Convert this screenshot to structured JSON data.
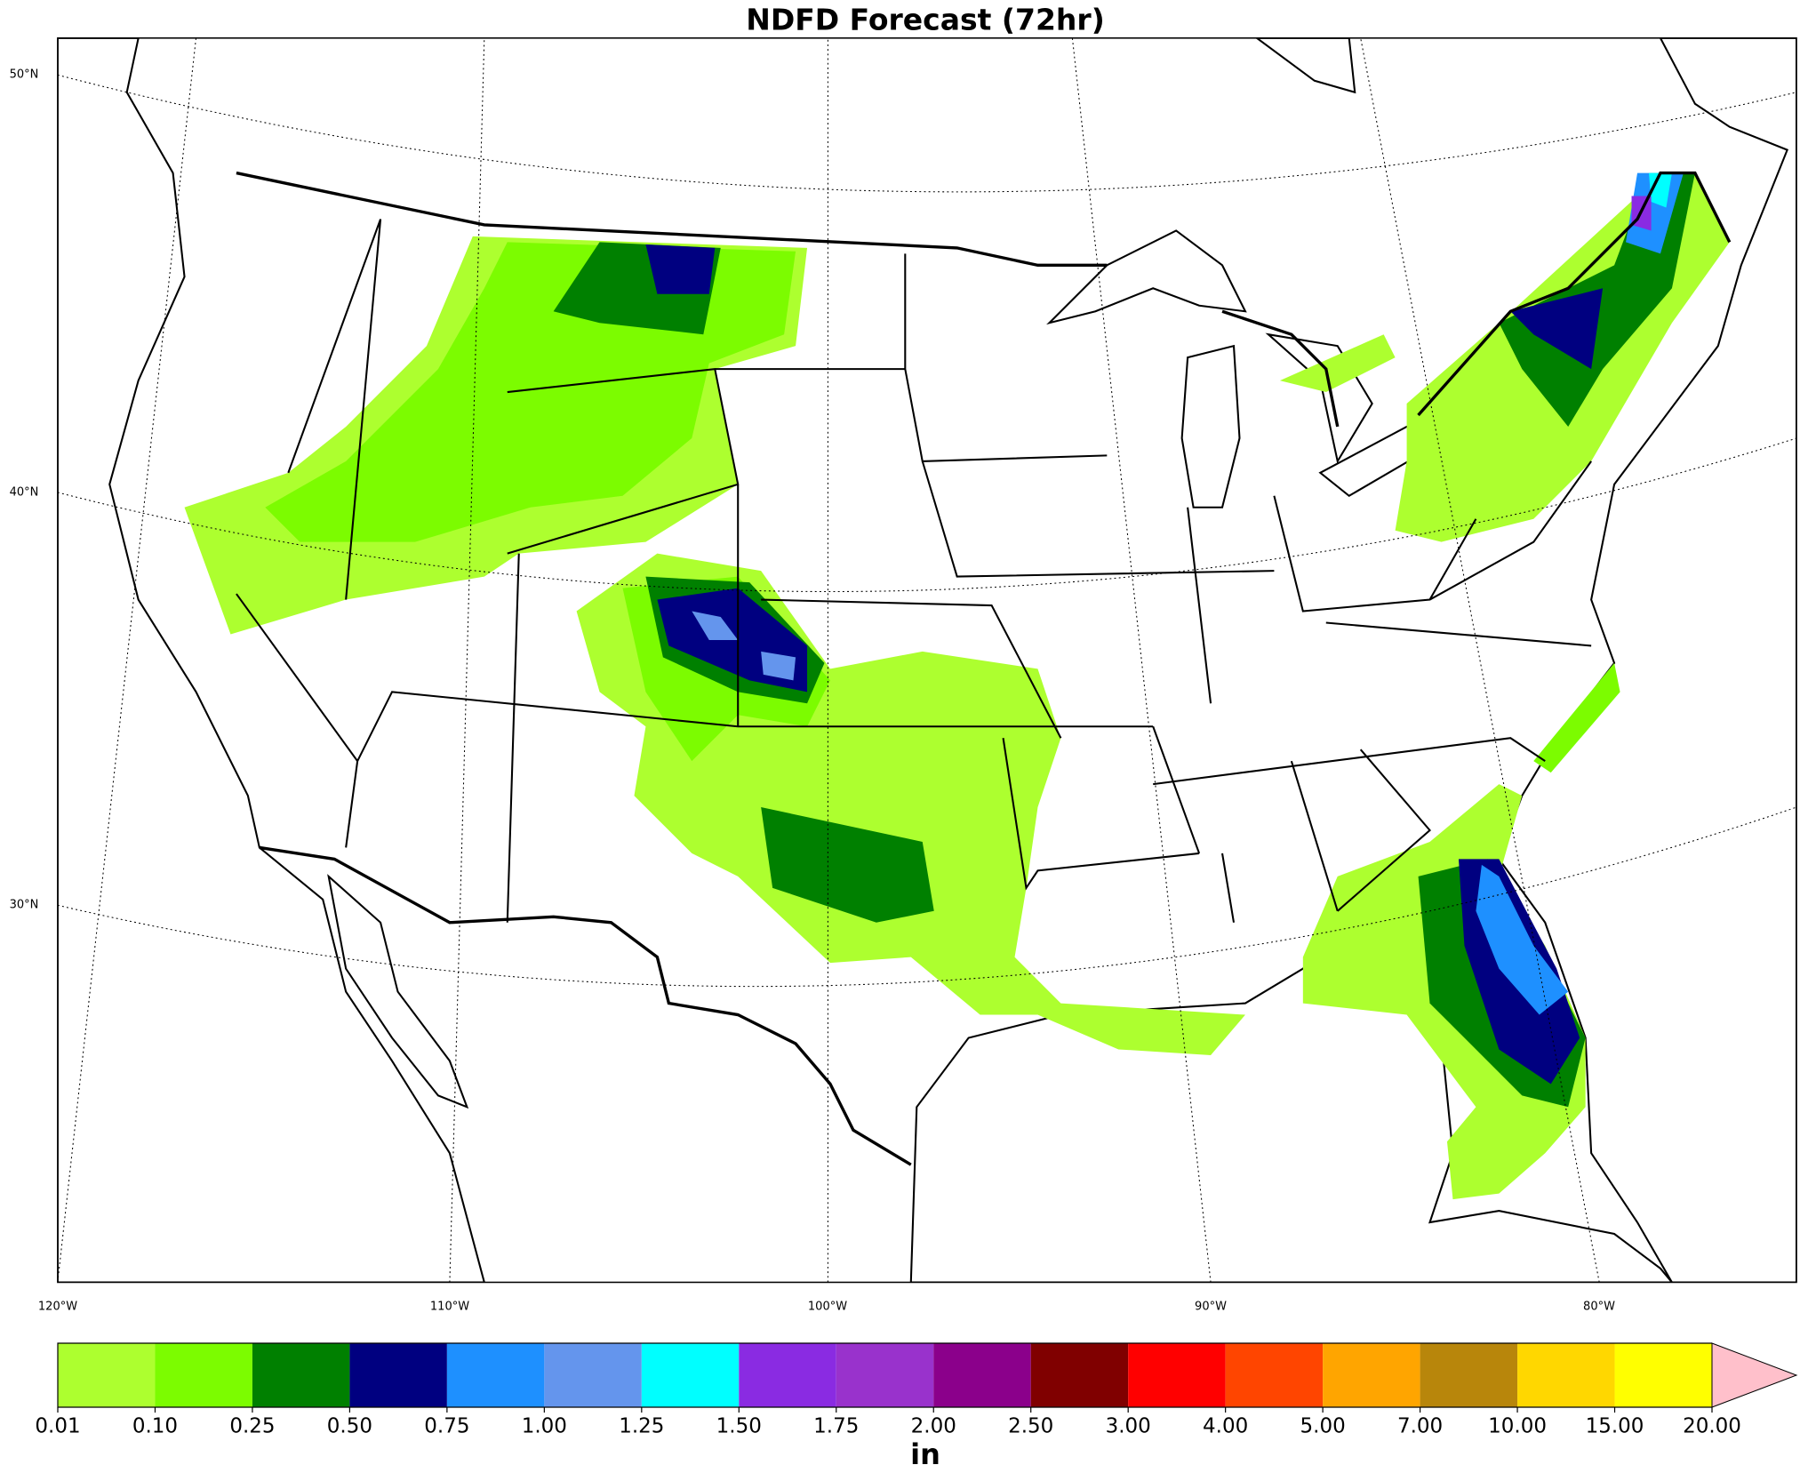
{
  "chart_data": {
    "type": "map",
    "title": "NDFD Forecast (72hr)",
    "lat_labels": [
      "50°N",
      "40°N",
      "30°N"
    ],
    "lon_labels": [
      "120°W",
      "110°W",
      "100°W",
      "90°W",
      "80°W"
    ],
    "colorbar": {
      "ticks": [
        0.01,
        {
          "value": 0.1,
          "label": "0.10"
        },
        0.25,
        {
          "value": 0.5,
          "label": "0.50"
        },
        0.75,
        {
          "value": 1,
          "label": "1.00"
        },
        1.25,
        {
          "value": 1.5,
          "label": "1.50"
        },
        1.75,
        {
          "value": 2,
          "label": "2.00"
        },
        {
          "value": 2.5,
          "label": "2.50"
        },
        {
          "value": 3,
          "label": "3.00"
        },
        {
          "value": 4,
          "label": "4.00"
        },
        {
          "value": 5,
          "label": "5.00"
        },
        {
          "value": 7,
          "label": "7.00"
        },
        {
          "value": 10,
          "label": "10.00"
        },
        {
          "value": 15,
          "label": "15.00"
        },
        {
          "value": 20,
          "label": "20.00"
        }
      ],
      "colors": [
        "#adff2f",
        "#7cfc00",
        "#008000",
        "#000080",
        "#1e90ff",
        "#6495ed",
        "#00ffff",
        "#8a2be2",
        "#9932cc",
        "#8b008b",
        "#800000",
        "#ff0000",
        "#ff4500",
        "#ffa500",
        "#b8860b",
        "#ffd700",
        "#ffff00"
      ],
      "extend_color": "#ffc0cb",
      "label": "in"
    }
  }
}
